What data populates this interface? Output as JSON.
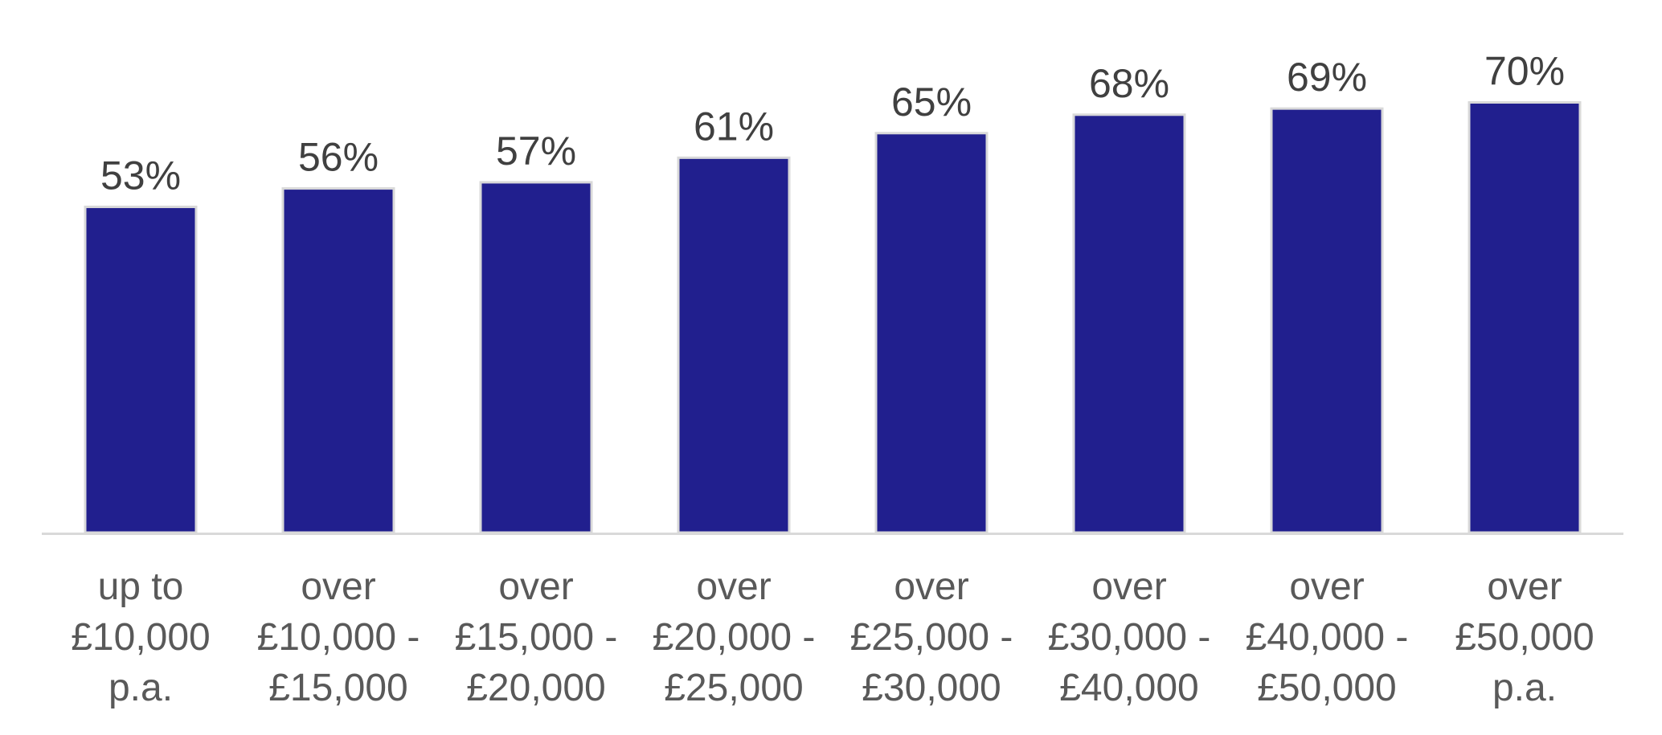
{
  "chart_data": {
    "type": "bar",
    "categories": [
      "up to £10,000 p.a.",
      "over £10,000 - £15,000",
      "over £15,000 - £20,000",
      "over £20,000 - £25,000",
      "over £25,000 - £30,000",
      "over £30,000 - £40,000",
      "over £40,000 - £50,000",
      "over £50,000 p.a."
    ],
    "category_label_lines": [
      [
        "up to",
        "£10,000",
        "p.a."
      ],
      [
        "over",
        "£10,000 -",
        "£15,000"
      ],
      [
        "over",
        "£15,000 -",
        "£20,000"
      ],
      [
        "over",
        "£20,000 -",
        "£25,000"
      ],
      [
        "over",
        "£25,000 -",
        "£30,000"
      ],
      [
        "over",
        "£30,000 -",
        "£40,000"
      ],
      [
        "over",
        "£40,000 -",
        "£50,000"
      ],
      [
        "over",
        "£50,000",
        "p.a."
      ]
    ],
    "values": [
      53,
      56,
      57,
      61,
      65,
      68,
      69,
      70
    ],
    "data_labels": [
      "53%",
      "56%",
      "57%",
      "61%",
      "65%",
      "68%",
      "69%",
      "70%"
    ],
    "title": "",
    "xlabel": "",
    "ylabel": "",
    "ylim": [
      0,
      80
    ],
    "grid": false,
    "legend": "none",
    "colors": {
      "bar": "#211F8E",
      "bar_outline": "#D9D9D9",
      "axis": "#D9D9D9",
      "text": "#404040"
    }
  }
}
